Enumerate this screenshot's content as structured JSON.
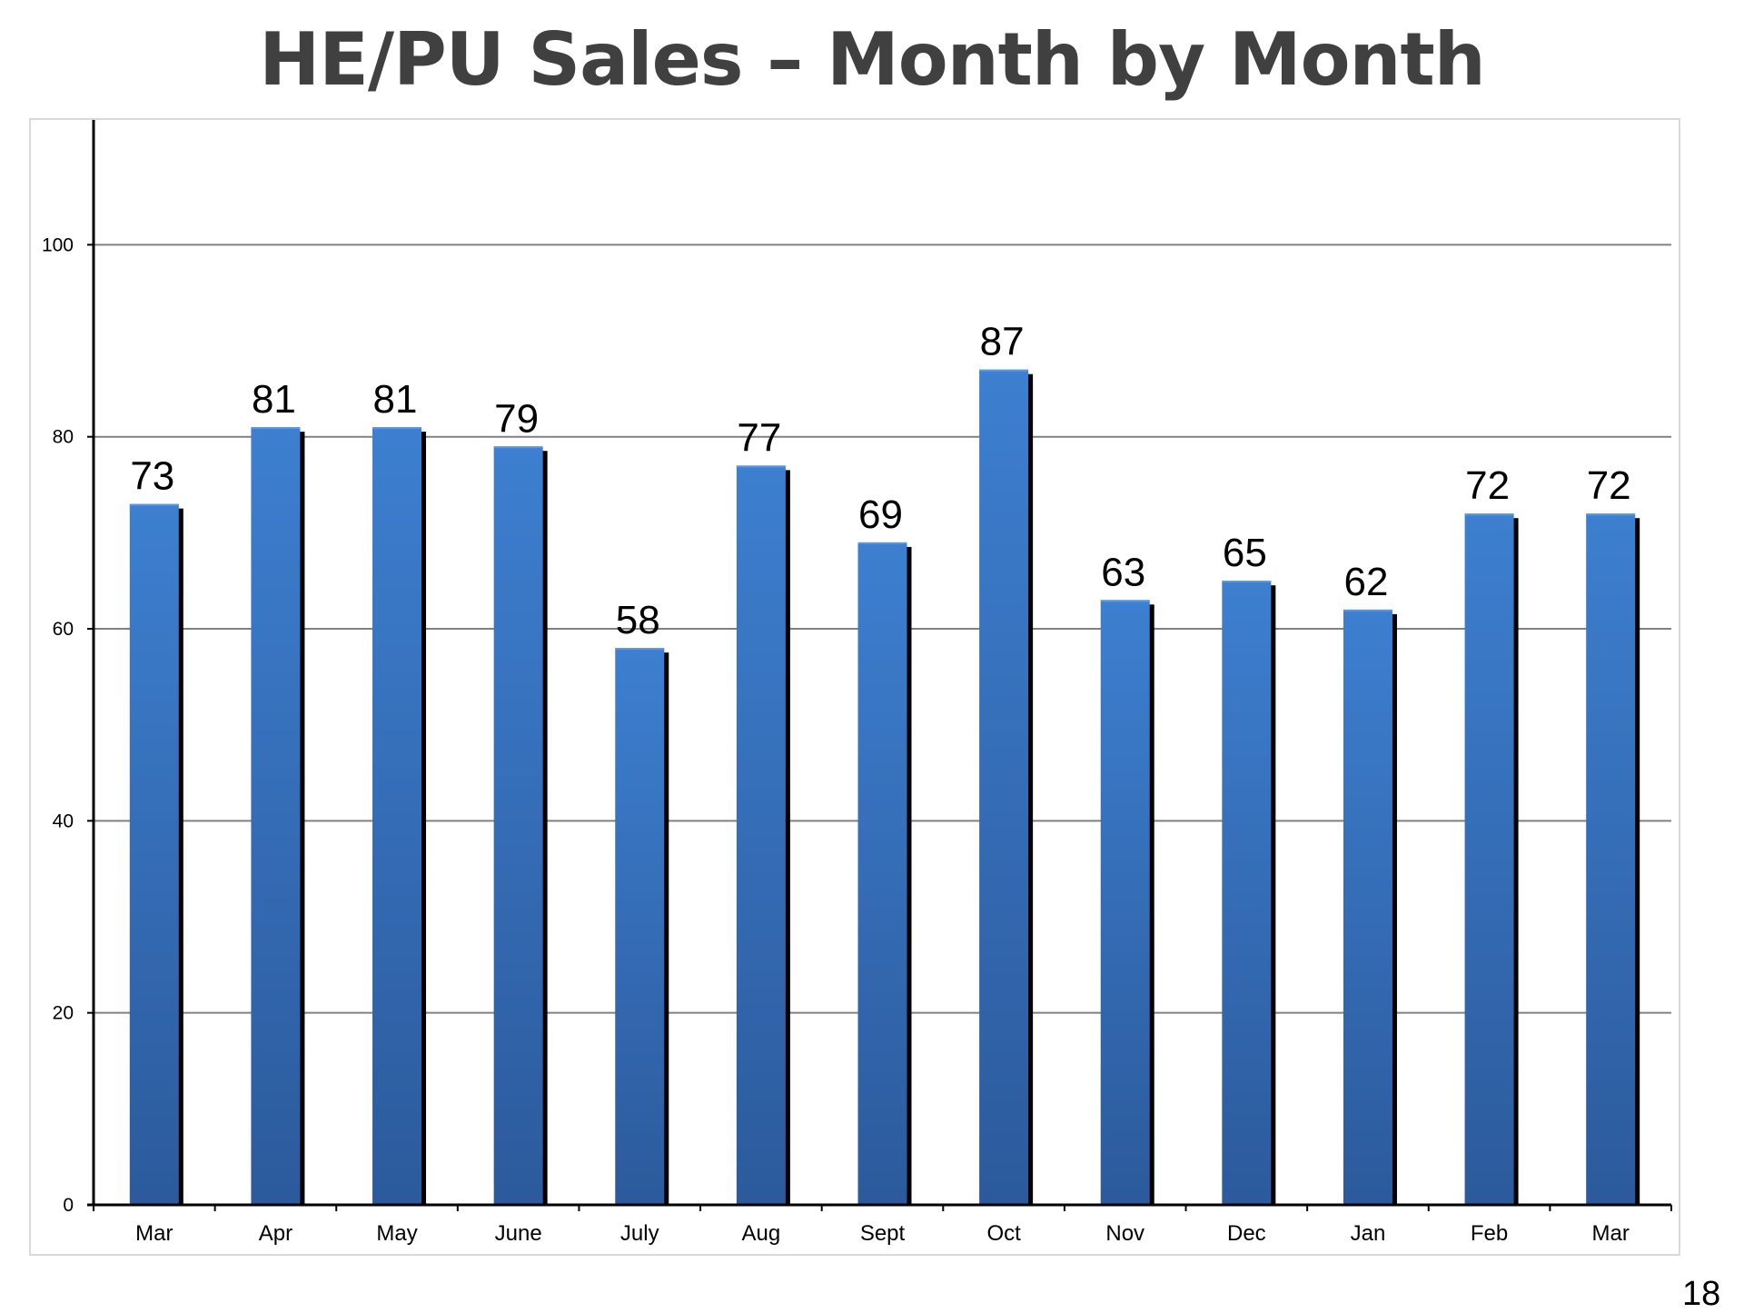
{
  "slide": {
    "title": "HE/PU Sales – Month by Month",
    "page_number": "18"
  },
  "colors": {
    "bar_top": "#3d7fd0",
    "bar_bottom": "#2c5a9c",
    "bar_shadow": "#000000",
    "gridline": "#808080",
    "axis": "#000000",
    "frame": "#d9d9d9"
  },
  "chart_data": {
    "type": "bar",
    "title": "",
    "xlabel": "",
    "ylabel": "",
    "categories": [
      "Mar",
      "Apr",
      "May",
      "June",
      "July",
      "Aug",
      "Sept",
      "Oct",
      "Nov",
      "Dec",
      "Jan",
      "Feb",
      "Mar"
    ],
    "values": [
      73,
      81,
      81,
      79,
      58,
      77,
      69,
      87,
      63,
      65,
      62,
      72,
      72
    ],
    "data_labels": [
      "73",
      "81",
      "81",
      "79",
      "58",
      "77",
      "69",
      "87",
      "63",
      "65",
      "62",
      "72",
      "72"
    ],
    "ylim": [
      0,
      113
    ],
    "yticks": [
      0,
      20,
      40,
      60,
      80,
      100
    ],
    "ytick_labels": [
      "0",
      "20",
      "40",
      "60",
      "80",
      "100"
    ],
    "grid": true,
    "legend": "none"
  }
}
